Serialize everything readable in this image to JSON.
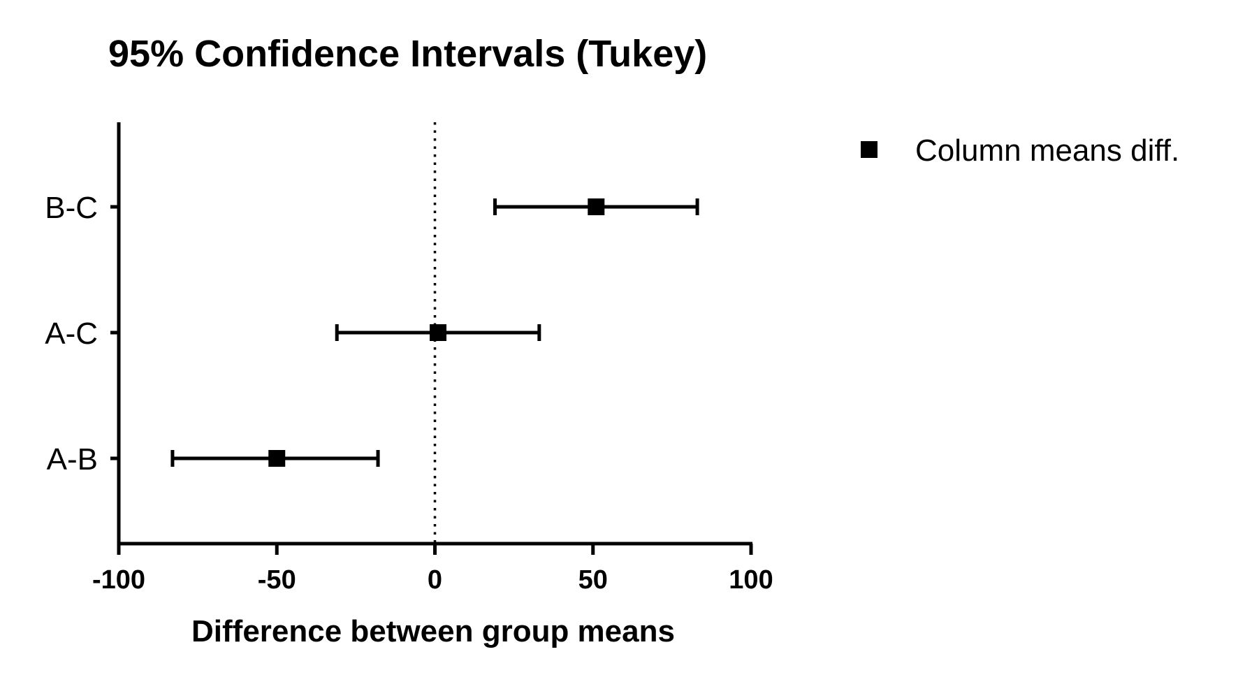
{
  "chart_data": {
    "type": "scatter",
    "title": "95% Confidence Intervals (Tukey)",
    "xlabel": "Difference between group means",
    "ylabel": "",
    "xlim": [
      -100,
      100
    ],
    "xticks": [
      -100,
      -50,
      0,
      50,
      100
    ],
    "xtick_labels": [
      "-100",
      "-50",
      "0",
      "50",
      "100"
    ],
    "reference_line": {
      "x": 0,
      "style": "dotted"
    },
    "grid": false,
    "legend": {
      "placement": "top-right"
    },
    "categories": [
      "A-B",
      "A-C",
      "B-C"
    ],
    "series": [
      {
        "name": "Column means diff.",
        "marker": "square",
        "color": "#000000",
        "points": [
          {
            "category": "A-B",
            "x": -50,
            "lower": -83,
            "upper": -18
          },
          {
            "category": "A-C",
            "x": 1,
            "lower": -31,
            "upper": 33
          },
          {
            "category": "B-C",
            "x": 51,
            "lower": 19,
            "upper": 83
          }
        ]
      }
    ]
  }
}
